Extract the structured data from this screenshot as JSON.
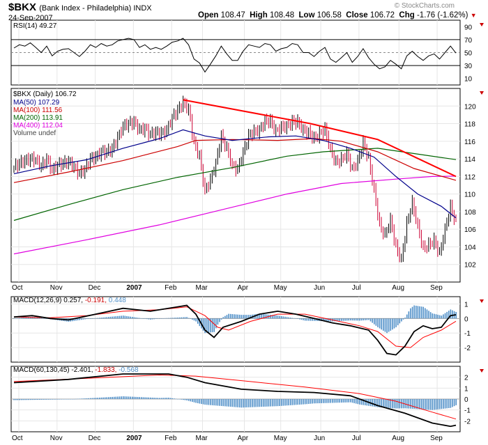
{
  "header": {
    "symbol": "$BKX",
    "name": "(Bank Index - Philadelphia) INDX",
    "date": "24-Sep-2007",
    "watermark": "© StockCharts.com",
    "open_label": "Open",
    "open": "108.47",
    "high_label": "High",
    "high": "108.48",
    "low_label": "Low",
    "low": "106.58",
    "close_label": "Close",
    "close": "106.72",
    "chg_label": "Chg",
    "chg": "-1.76 (-1.62%)",
    "chg_arrow": "▼"
  },
  "legends": {
    "rsi": "RSI(14) 49.27",
    "price": "$BKX (Daily) 106.72",
    "ma50": "MA(50) 107.29",
    "ma100": "MA(100) 111.56",
    "ma200": "MA(200) 113.91",
    "ma400": "MA(400) 112.04",
    "volume": "Volume undef",
    "macd1_a": "MACD(12,26,9) 0.257,",
    "macd1_b": "-0.191,",
    "macd1_c": "0.448",
    "macd2_a": "MACD(60,130,45) -2.401,",
    "macd2_b": "-1.833,",
    "macd2_c": "-0.568"
  },
  "colors": {
    "ma50": "#00008b",
    "ma100": "#cc0000",
    "ma200": "#006400",
    "ma400": "#e000e0",
    "trend": "#ff0000",
    "up": "#000000",
    "down": "#cc0033",
    "hist": "#4f8fc8",
    "signal": "#ff0000"
  },
  "chart_data": {
    "type": "line",
    "title": "$BKX (Bank Index - Philadelphia) INDX",
    "x_axis_labels": [
      "Oct",
      "Nov",
      "Dec",
      "2007",
      "Feb",
      "Mar",
      "Apr",
      "May",
      "Jun",
      "Jul",
      "Aug",
      "Sep"
    ],
    "price_panel": {
      "ylim": [
        100,
        122
      ],
      "ticks": [
        "102",
        "104",
        "106",
        "108",
        "110",
        "112",
        "114",
        "116",
        "118",
        "120"
      ],
      "close_points": [
        [
          0,
          113.0
        ],
        [
          3,
          113.5
        ],
        [
          6,
          113.8
        ],
        [
          9,
          114.0
        ],
        [
          12,
          113.9
        ],
        [
          15,
          113.1
        ],
        [
          18,
          114.0
        ],
        [
          21,
          112.7
        ],
        [
          24,
          113.3
        ],
        [
          27,
          113.5
        ],
        [
          30,
          113.7
        ],
        [
          33,
          113.1
        ],
        [
          36,
          112.3
        ],
        [
          39,
          112.8
        ],
        [
          42,
          114.0
        ],
        [
          45,
          114.2
        ],
        [
          48,
          114.8
        ],
        [
          51,
          114.8
        ],
        [
          54,
          115.1
        ],
        [
          57,
          116.4
        ],
        [
          60,
          117.7
        ],
        [
          63,
          118.0
        ],
        [
          66,
          118.2
        ],
        [
          69,
          117.3
        ],
        [
          72,
          117.4
        ],
        [
          75,
          116.8
        ],
        [
          78,
          117.0
        ],
        [
          81,
          116.9
        ],
        [
          84,
          117.2
        ],
        [
          87,
          118.7
        ],
        [
          90,
          119.5
        ],
        [
          93,
          120.4
        ],
        [
          96,
          119.6
        ],
        [
          99,
          115.8
        ],
        [
          102,
          114.3
        ],
        [
          105,
          110.3
        ],
        [
          108,
          111.6
        ],
        [
          111,
          113.5
        ],
        [
          114,
          116.6
        ],
        [
          117,
          115.2
        ],
        [
          120,
          113.2
        ],
        [
          123,
          112.8
        ],
        [
          126,
          114.7
        ],
        [
          129,
          116.6
        ],
        [
          132,
          117.1
        ],
        [
          135,
          117.2
        ],
        [
          138,
          118.3
        ],
        [
          141,
          118.3
        ],
        [
          144,
          117.1
        ],
        [
          147,
          117.6
        ],
        [
          150,
          117.7
        ],
        [
          153,
          118.2
        ],
        [
          156,
          118.2
        ],
        [
          159,
          117.2
        ],
        [
          162,
          117.0
        ],
        [
          165,
          116.3
        ],
        [
          168,
          116.8
        ],
        [
          171,
          117.4
        ],
        [
          174,
          115.0
        ],
        [
          177,
          113.6
        ],
        [
          180,
          113.9
        ],
        [
          183,
          114.6
        ],
        [
          186,
          112.8
        ],
        [
          189,
          113.7
        ],
        [
          192,
          115.8
        ],
        [
          195,
          114.0
        ],
        [
          198,
          110.4
        ],
        [
          201,
          106.5
        ],
        [
          204,
          105.3
        ],
        [
          207,
          107.0
        ],
        [
          210,
          104.0
        ],
        [
          213,
          102.5
        ],
        [
          216,
          106.6
        ],
        [
          219,
          109.0
        ],
        [
          222,
          106.3
        ],
        [
          225,
          103.8
        ],
        [
          228,
          104.2
        ],
        [
          231,
          104.7
        ],
        [
          234,
          103.2
        ],
        [
          237,
          106.0
        ],
        [
          240,
          108.5
        ],
        [
          243,
          106.72
        ]
      ],
      "ma50": [
        [
          0,
          112.3
        ],
        [
          20,
          113.2
        ],
        [
          40,
          113.9
        ],
        [
          60,
          115.2
        ],
        [
          80,
          116.3
        ],
        [
          93,
          117.3
        ],
        [
          105,
          116.6
        ],
        [
          120,
          116.1
        ],
        [
          140,
          116.5
        ],
        [
          155,
          116.6
        ],
        [
          170,
          116.1
        ],
        [
          185,
          115.2
        ],
        [
          198,
          114.2
        ],
        [
          210,
          112.0
        ],
        [
          222,
          110.0
        ],
        [
          235,
          108.6
        ],
        [
          243,
          107.29
        ]
      ],
      "ma100": [
        [
          0,
          111.3
        ],
        [
          30,
          112.5
        ],
        [
          60,
          113.8
        ],
        [
          90,
          115.4
        ],
        [
          100,
          116.1
        ],
        [
          120,
          116.2
        ],
        [
          145,
          116.1
        ],
        [
          165,
          116.3
        ],
        [
          180,
          116.0
        ],
        [
          200,
          114.8
        ],
        [
          220,
          112.9
        ],
        [
          243,
          111.56
        ]
      ],
      "ma200": [
        [
          0,
          107.0
        ],
        [
          30,
          108.8
        ],
        [
          60,
          110.5
        ],
        [
          90,
          111.9
        ],
        [
          120,
          113.0
        ],
        [
          150,
          114.3
        ],
        [
          170,
          114.8
        ],
        [
          200,
          115.2
        ],
        [
          220,
          114.6
        ],
        [
          243,
          113.91
        ]
      ],
      "ma400": [
        [
          0,
          103.2
        ],
        [
          40,
          104.8
        ],
        [
          80,
          106.5
        ],
        [
          120,
          108.5
        ],
        [
          150,
          110.0
        ],
        [
          180,
          111.2
        ],
        [
          210,
          111.7
        ],
        [
          230,
          112.0
        ],
        [
          243,
          112.04
        ]
      ],
      "trendline": [
        [
          93,
          120.7
        ],
        [
          163,
          118.0
        ],
        [
          200,
          116.2
        ],
        [
          243,
          112.0
        ]
      ]
    },
    "rsi_panel": {
      "ylim": [
        0,
        100
      ],
      "ticks": [
        "10",
        "30",
        "50",
        "70",
        "90"
      ],
      "values": [
        [
          0,
          57
        ],
        [
          3,
          62
        ],
        [
          6,
          60
        ],
        [
          9,
          65
        ],
        [
          12,
          58
        ],
        [
          15,
          50
        ],
        [
          18,
          60
        ],
        [
          21,
          45
        ],
        [
          24,
          52
        ],
        [
          27,
          55
        ],
        [
          30,
          56
        ],
        [
          33,
          50
        ],
        [
          36,
          44
        ],
        [
          39,
          52
        ],
        [
          42,
          62
        ],
        [
          45,
          58
        ],
        [
          48,
          64
        ],
        [
          51,
          60
        ],
        [
          54,
          62
        ],
        [
          57,
          68
        ],
        [
          60,
          70
        ],
        [
          63,
          72
        ],
        [
          66,
          70
        ],
        [
          69,
          58
        ],
        [
          72,
          62
        ],
        [
          75,
          55
        ],
        [
          78,
          58
        ],
        [
          81,
          55
        ],
        [
          84,
          60
        ],
        [
          87,
          66
        ],
        [
          90,
          68
        ],
        [
          93,
          72
        ],
        [
          96,
          62
        ],
        [
          99,
          40
        ],
        [
          102,
          34
        ],
        [
          105,
          20
        ],
        [
          108,
          32
        ],
        [
          111,
          45
        ],
        [
          114,
          60
        ],
        [
          117,
          48
        ],
        [
          120,
          38
        ],
        [
          123,
          38
        ],
        [
          126,
          52
        ],
        [
          129,
          62
        ],
        [
          132,
          60
        ],
        [
          135,
          58
        ],
        [
          138,
          64
        ],
        [
          141,
          62
        ],
        [
          144,
          52
        ],
        [
          147,
          56
        ],
        [
          150,
          58
        ],
        [
          153,
          64
        ],
        [
          156,
          62
        ],
        [
          159,
          50
        ],
        [
          162,
          50
        ],
        [
          165,
          44
        ],
        [
          168,
          52
        ],
        [
          171,
          58
        ],
        [
          174,
          40
        ],
        [
          177,
          35
        ],
        [
          180,
          42
        ],
        [
          183,
          50
        ],
        [
          186,
          35
        ],
        [
          189,
          44
        ],
        [
          192,
          56
        ],
        [
          195,
          42
        ],
        [
          198,
          32
        ],
        [
          201,
          25
        ],
        [
          204,
          28
        ],
        [
          207,
          38
        ],
        [
          210,
          32
        ],
        [
          213,
          25
        ],
        [
          216,
          45
        ],
        [
          219,
          52
        ],
        [
          222,
          44
        ],
        [
          225,
          38
        ],
        [
          228,
          45
        ],
        [
          231,
          48
        ],
        [
          234,
          40
        ],
        [
          237,
          50
        ],
        [
          240,
          60
        ],
        [
          243,
          49.27
        ]
      ]
    },
    "macd1_panel": {
      "ylim": [
        -3,
        1.5
      ],
      "ticks": [
        "1",
        "0",
        "-1",
        "-2"
      ],
      "macd": [
        [
          0,
          0.1
        ],
        [
          10,
          0.2
        ],
        [
          20,
          0.0
        ],
        [
          30,
          -0.1
        ],
        [
          45,
          0.3
        ],
        [
          60,
          0.7
        ],
        [
          75,
          0.5
        ],
        [
          90,
          0.8
        ],
        [
          95,
          0.9
        ],
        [
          100,
          0.3
        ],
        [
          105,
          -0.8
        ],
        [
          110,
          -1.3
        ],
        [
          115,
          -0.6
        ],
        [
          125,
          -0.2
        ],
        [
          135,
          0.3
        ],
        [
          145,
          0.5
        ],
        [
          155,
          0.3
        ],
        [
          165,
          0.0
        ],
        [
          175,
          -0.3
        ],
        [
          185,
          -0.5
        ],
        [
          195,
          -0.8
        ],
        [
          200,
          -1.5
        ],
        [
          205,
          -2.4
        ],
        [
          210,
          -2.5
        ],
        [
          215,
          -1.9
        ],
        [
          220,
          -0.9
        ],
        [
          225,
          -0.5
        ],
        [
          230,
          -0.7
        ],
        [
          235,
          -0.6
        ],
        [
          240,
          0.2
        ],
        [
          243,
          0.257
        ]
      ],
      "signal": [
        [
          0,
          0.1
        ],
        [
          20,
          0.05
        ],
        [
          40,
          0.2
        ],
        [
          60,
          0.5
        ],
        [
          80,
          0.6
        ],
        [
          95,
          0.8
        ],
        [
          105,
          0.2
        ],
        [
          112,
          -0.6
        ],
        [
          118,
          -0.8
        ],
        [
          130,
          -0.2
        ],
        [
          145,
          0.3
        ],
        [
          160,
          0.3
        ],
        [
          175,
          -0.1
        ],
        [
          190,
          -0.5
        ],
        [
          200,
          -0.9
        ],
        [
          210,
          -1.9
        ],
        [
          218,
          -2.0
        ],
        [
          225,
          -1.3
        ],
        [
          235,
          -0.8
        ],
        [
          243,
          -0.191
        ]
      ],
      "histogram_last": 0.448
    },
    "macd2_panel": {
      "ylim": [
        -3,
        3
      ],
      "ticks": [
        "2",
        "1",
        "0",
        "-1",
        "-2"
      ],
      "macd": [
        [
          0,
          1.5
        ],
        [
          30,
          1.8
        ],
        [
          60,
          2.3
        ],
        [
          85,
          2.3
        ],
        [
          95,
          2.0
        ],
        [
          105,
          1.5
        ],
        [
          125,
          0.9
        ],
        [
          145,
          0.7
        ],
        [
          165,
          0.6
        ],
        [
          185,
          0.3
        ],
        [
          200,
          -0.6
        ],
        [
          215,
          -1.3
        ],
        [
          230,
          -2.2
        ],
        [
          240,
          -2.5
        ],
        [
          243,
          -2.401
        ]
      ],
      "signal": [
        [
          0,
          1.6
        ],
        [
          40,
          1.9
        ],
        [
          80,
          2.2
        ],
        [
          100,
          2.1
        ],
        [
          130,
          1.6
        ],
        [
          160,
          1.1
        ],
        [
          190,
          0.5
        ],
        [
          210,
          -0.2
        ],
        [
          230,
          -1.2
        ],
        [
          243,
          -1.833
        ]
      ],
      "histogram_last": -0.568
    }
  }
}
